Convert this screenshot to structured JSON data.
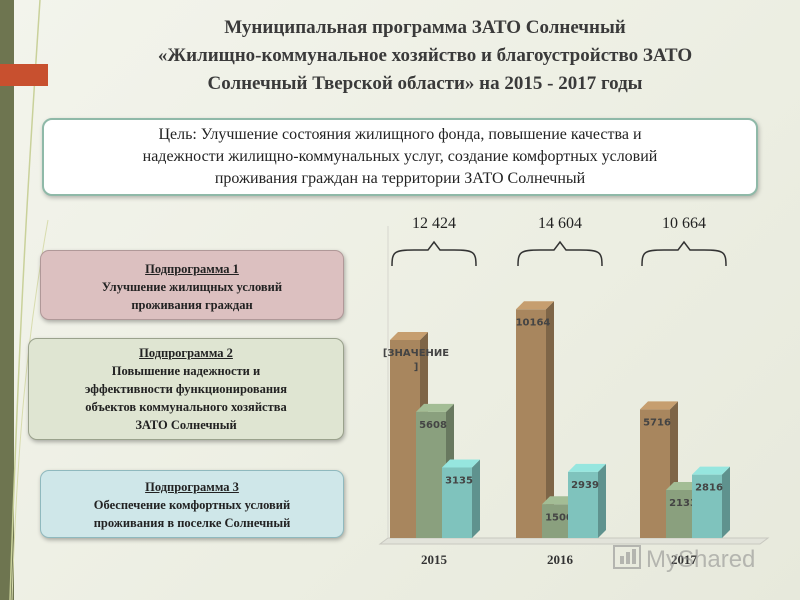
{
  "title": {
    "line1": "Муниципальная программа ЗАТО Солнечный",
    "line2": "«Жилищно-коммунальное хозяйство и благоустройство ЗАТО",
    "line3": "Солнечный Тверской области» на 2015 - 2017 годы"
  },
  "goal": {
    "line1": "Цель: Улучшение состояния жилищного фонда, повышение качества и",
    "line2": "надежности жилищно-коммунальных услуг, создание комфортных условий",
    "line3": "проживания граждан на территории ЗАТО Солнечный"
  },
  "subprograms": [
    {
      "heading": "Подпрограмма 1",
      "lines": [
        "Улучшение жилищных условий",
        "проживания граждан"
      ],
      "color": "#dcc0c0"
    },
    {
      "heading": "Подпрограмма 2",
      "lines": [
        "Повышение надежности и",
        "эффективности функционирования",
        "объектов коммунального хозяйства",
        "ЗАТО Солнечный"
      ],
      "color": "#dfe5d2"
    },
    {
      "heading": "Подпрограмма 3",
      "lines": [
        "Обеспечение комфортных условий",
        "проживания в поселке Солнечный"
      ],
      "color": "#cfe7e9"
    }
  ],
  "chart_data": {
    "type": "bar",
    "categories": [
      "2015",
      "2016",
      "2017"
    ],
    "totals": [
      "12 424",
      "14 604",
      "10 664"
    ],
    "series": [
      {
        "values": [
          null,
          10164,
          5716
        ],
        "labels": [
          "[ЗНАЧЕНИЕ ]",
          "10164",
          "5716"
        ],
        "color": "#a8865e"
      },
      {
        "values": [
          5608,
          1500,
          2133
        ],
        "labels": [
          "5608",
          "1500",
          "2133"
        ],
        "color": "#8aa07e"
      },
      {
        "values": [
          3135,
          2939,
          2816
        ],
        "labels": [
          "3135",
          "2939",
          "2816"
        ],
        "color": "#7fc3bd"
      }
    ],
    "ylim": [
      0,
      12000
    ]
  },
  "watermark": "MyShared"
}
